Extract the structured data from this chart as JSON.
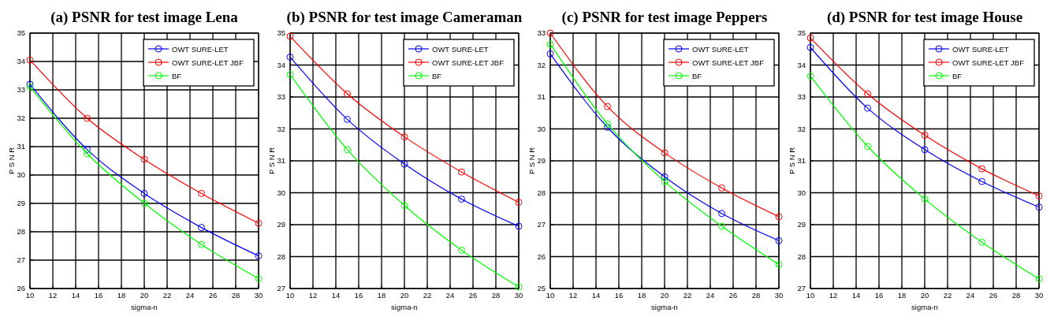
{
  "chart_data": [
    {
      "type": "line",
      "title": "(a) PSNR for test image Lena",
      "xlabel": "sigma-n",
      "ylabel": "P S N R",
      "x": [
        10,
        15,
        20,
        25,
        30
      ],
      "xlim": [
        10,
        30
      ],
      "xticks": [
        10,
        12,
        14,
        16,
        18,
        20,
        22,
        24,
        26,
        28,
        30
      ],
      "ylim": [
        26,
        35
      ],
      "yticks": [
        26,
        27,
        28,
        29,
        30,
        31,
        32,
        33,
        34,
        35
      ],
      "grid": true,
      "legend": "top right",
      "marker": "circle",
      "line_style": "solid",
      "series": [
        {
          "name": "OWT SURE-LET",
          "color": "#0000ff",
          "values": [
            33.2,
            30.9,
            29.35,
            28.15,
            27.15
          ]
        },
        {
          "name": "OWT SURE-LET JBF",
          "color": "#ff0000",
          "values": [
            34.05,
            32.0,
            30.55,
            29.35,
            28.3
          ]
        },
        {
          "name": "BF",
          "color": "#00ff00",
          "values": [
            33.1,
            30.75,
            29.0,
            27.55,
            26.35
          ]
        }
      ]
    },
    {
      "type": "line",
      "title": "(b) PSNR for test image Cameraman",
      "xlabel": "sigma-n",
      "ylabel": "P S N R",
      "x": [
        10,
        15,
        20,
        25,
        30
      ],
      "xlim": [
        10,
        30
      ],
      "xticks": [
        10,
        12,
        14,
        16,
        18,
        20,
        22,
        24,
        26,
        28,
        30
      ],
      "ylim": [
        27,
        35
      ],
      "yticks": [
        27,
        28,
        29,
        30,
        31,
        32,
        33,
        34,
        35
      ],
      "grid": true,
      "legend": "top right",
      "marker": "circle",
      "line_style": "solid",
      "series": [
        {
          "name": "OWT SURE-LET",
          "color": "#0000ff",
          "values": [
            34.25,
            32.3,
            30.9,
            29.8,
            28.95
          ]
        },
        {
          "name": "OWT SURE-LET JBF",
          "color": "#ff0000",
          "values": [
            34.9,
            33.1,
            31.75,
            30.65,
            29.7
          ]
        },
        {
          "name": "BF",
          "color": "#00ff00",
          "values": [
            33.7,
            31.35,
            29.6,
            28.2,
            27.05
          ]
        }
      ]
    },
    {
      "type": "line",
      "title": "(c) PSNR for test image Peppers",
      "xlabel": "sigma-n",
      "ylabel": "P S N R",
      "x": [
        10,
        15,
        20,
        25,
        30
      ],
      "xlim": [
        10,
        30
      ],
      "xticks": [
        10,
        12,
        14,
        16,
        18,
        20,
        22,
        24,
        26,
        28,
        30
      ],
      "ylim": [
        25,
        33
      ],
      "yticks": [
        25,
        26,
        27,
        28,
        29,
        30,
        31,
        32,
        33
      ],
      "grid": true,
      "legend": "top right",
      "marker": "circle",
      "line_style": "solid",
      "series": [
        {
          "name": "OWT SURE-LET",
          "color": "#0000ff",
          "values": [
            32.35,
            30.05,
            28.5,
            27.35,
            26.5
          ]
        },
        {
          "name": "OWT SURE-LET JBF",
          "color": "#ff0000",
          "values": [
            33.0,
            30.7,
            29.25,
            28.15,
            27.25
          ]
        },
        {
          "name": "BF",
          "color": "#00ff00",
          "values": [
            32.65,
            30.15,
            28.35,
            26.95,
            25.75
          ]
        }
      ]
    },
    {
      "type": "line",
      "title": "(d) PSNR for test image House",
      "xlabel": "sigma-n",
      "ylabel": "P S N R",
      "x": [
        10,
        15,
        20,
        25,
        30
      ],
      "xlim": [
        10,
        30
      ],
      "xticks": [
        10,
        12,
        14,
        16,
        18,
        20,
        22,
        24,
        26,
        28,
        30
      ],
      "ylim": [
        27,
        35
      ],
      "yticks": [
        27,
        28,
        29,
        30,
        31,
        32,
        33,
        34,
        35
      ],
      "grid": true,
      "legend": "top right",
      "marker": "circle",
      "line_style": "solid",
      "series": [
        {
          "name": "OWT SURE-LET",
          "color": "#0000ff",
          "values": [
            34.55,
            32.65,
            31.35,
            30.35,
            29.55
          ]
        },
        {
          "name": "OWT SURE-LET JBF",
          "color": "#ff0000",
          "values": [
            34.85,
            33.1,
            31.8,
            30.75,
            29.9
          ]
        },
        {
          "name": "BF",
          "color": "#00ff00",
          "values": [
            33.65,
            31.45,
            29.8,
            28.45,
            27.3
          ]
        }
      ]
    }
  ]
}
